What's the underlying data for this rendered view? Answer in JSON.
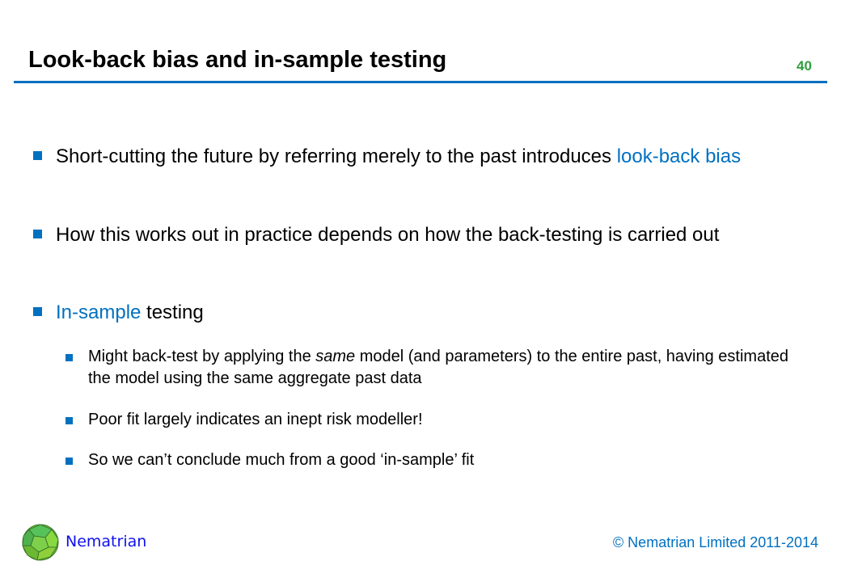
{
  "slide": {
    "title": "Look-back bias and in-sample testing",
    "page_number": "40",
    "accent_color": "#0070c0",
    "bullets": [
      {
        "parts": [
          "Short-cutting the future by referring merely to the past introduces ",
          "look-back bias"
        ]
      },
      {
        "parts": [
          "How this works out in practice depends on how the back-testing is carried out"
        ]
      },
      {
        "parts": [
          "In-sample",
          " testing"
        ]
      }
    ],
    "sub_bullets": [
      {
        "parts": [
          "Might back-test by applying the ",
          "same",
          " model (and parameters) to the entire past, having estimated the model using the same aggregate past data"
        ]
      },
      {
        "parts": [
          "Poor fit largely indicates an inept risk modeller!"
        ]
      },
      {
        "parts": [
          "So we can’t conclude much from a good ‘in-sample’ fit"
        ]
      }
    ]
  },
  "footer": {
    "brand": "Nematrian",
    "logo_icon": "green-polyhedron-icon",
    "copyright": "© Nematrian Limited 2011-2014"
  }
}
